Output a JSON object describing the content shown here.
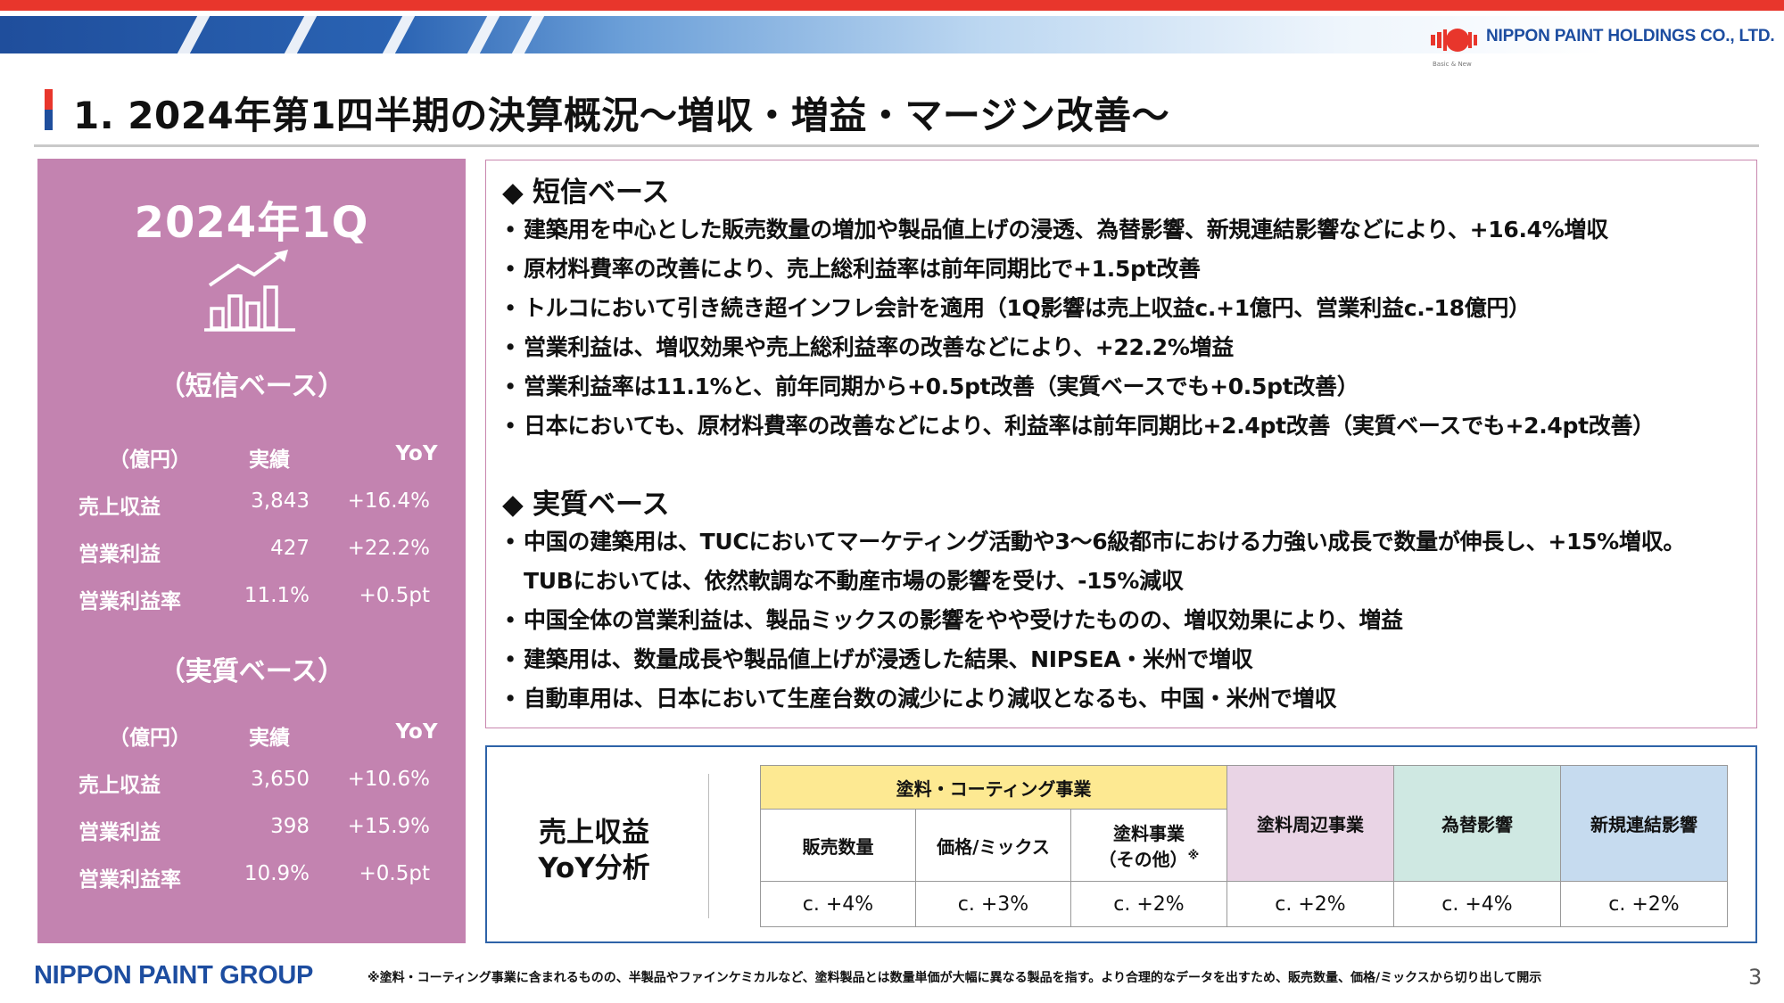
{
  "header": {
    "company_name": "NIPPON PAINT HOLDINGS CO., LTD.",
    "company_tagline": "Basic & New",
    "title": "1. 2024年第1四半期の決算概況～増収・増益・マージン改善～"
  },
  "colors": {
    "accent_red": "#e8362c",
    "accent_blue": "#1f4e9c",
    "panel_pink": "#c383b0",
    "coating_yellow": "#fde992",
    "peripheral_pink": "#e9d4e5",
    "fx_green": "#cfe8e2",
    "new_consolidation_blue": "#c6dbef"
  },
  "left_panel": {
    "period": "2024年1Q",
    "icon": "growth-chart-icon",
    "tanshin": {
      "heading": "（短信ベース）",
      "header": {
        "unit": "（億円）",
        "actual": "実績",
        "yoy": "YoY"
      },
      "rows": [
        {
          "label": "売上収益",
          "actual": "3,843",
          "yoy": "+16.4%"
        },
        {
          "label": "営業利益",
          "actual": "427",
          "yoy": "+22.2%"
        },
        {
          "label": "営業利益率",
          "actual": "11.1%",
          "yoy": "+0.5pt"
        }
      ]
    },
    "jisshitsu": {
      "heading": "（実質ベース）",
      "header": {
        "unit": "（億円）",
        "actual": "実績",
        "yoy": "YoY"
      },
      "rows": [
        {
          "label": "売上収益",
          "actual": "3,650",
          "yoy": "+10.6%"
        },
        {
          "label": "営業利益",
          "actual": "398",
          "yoy": "+15.9%"
        },
        {
          "label": "営業利益率",
          "actual": "10.9%",
          "yoy": "+0.5pt"
        }
      ]
    }
  },
  "bullets": {
    "tanshin": {
      "heading": "短信ベース",
      "items": [
        "建築用を中心とした販売数量の増加や製品値上げの浸透、為替影響、新規連結影響などにより、+16.4%増収",
        "原材料費率の改善により、売上総利益率は前年同期比で+1.5pt改善",
        "トルコにおいて引き続き超インフレ会計を適用（1Q影響は売上収益c.+1億円、営業利益c.-18億円）",
        "営業利益は、増収効果や売上総利益率の改善などにより、+22.2%増益",
        "営業利益率は11.1%と、前年同期から+0.5pt改善（実質ベースでも+0.5pt改善）",
        "日本においても、原材料費率の改善などにより、利益率は前年同期比+2.4pt改善（実質ベースでも+2.4pt改善）"
      ]
    },
    "jisshitsu": {
      "heading": "実質ベース",
      "items": [
        "中国の建築用は、TUCにおいてマーケティング活動や3～6級都市における力強い成長で数量が伸長し、+15%増収。",
        "TUBにおいては、依然軟調な不動産市場の影響を受け、-15%減収",
        "中国全体の営業利益は、製品ミックスの影響をやや受けたものの、増収効果により、増益",
        "建築用は、数量成長や製品値上げが浸透した結果、NIPSEA・米州で増収",
        "自動車用は、日本において生産台数の減少により減収となるも、中国・米州で増収"
      ]
    }
  },
  "yoy_analysis": {
    "label_line1": "売上収益",
    "label_line2": "YoY分析",
    "coating_header": "塗料・コーティング事業",
    "volume": "販売数量",
    "price_mix": "価格/ミックス",
    "coating_other_line1": "塗料事業",
    "coating_other_line2": "（その他）",
    "coating_other_mark": "※",
    "peripheral": "塗料周辺事業",
    "fx": "為替影響",
    "new_consolidation": "新規連結影響",
    "values": {
      "volume": "c. +4%",
      "price_mix": "c. +3%",
      "coating_other": "c. +2%",
      "peripheral": "c. +2%",
      "fx": "c. +4%",
      "new_consolidation": "c. +2%"
    }
  },
  "footer": {
    "group_logo": "NIPPON PAINT GROUP",
    "footnote": "※塗料・コーティング事業に含まれるものの、半製品やファインケミカルなど、塗料製品とは数量単価が大幅に異なる製品を指す。より合理的なデータを出すため、販売数量、価格/ミックスから切り出して開示",
    "page_number": "3"
  }
}
